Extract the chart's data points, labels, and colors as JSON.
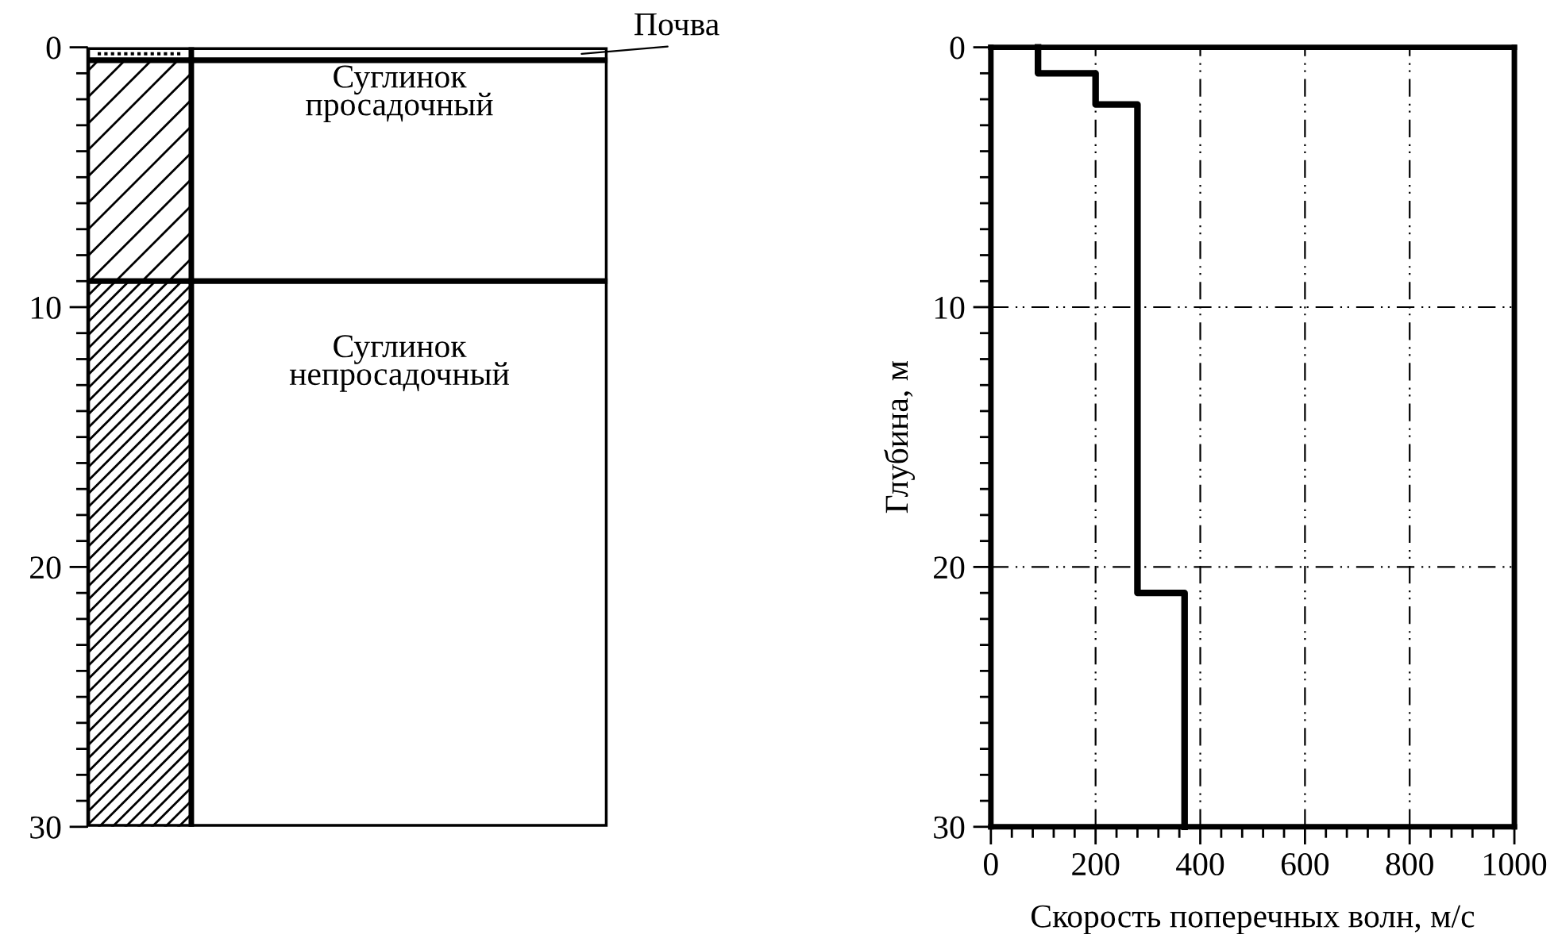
{
  "chart_data": [
    {
      "type": "bar",
      "stacked": true,
      "categories": [
        null
      ],
      "ylim": [
        30,
        0
      ],
      "yticks": [
        0,
        10,
        20,
        30
      ],
      "tick_labels": "y",
      "series": [
        {
          "name": "Почва",
          "color": "#ffffff",
          "values": [
            0.5
          ]
        },
        {
          "name": "Суглинок\nпросадочный",
          "color": "#ffffff",
          "values": [
            8.5
          ]
        },
        {
          "name": "Суглинок\nнепросадочный",
          "color": "#ffffff",
          "values": [
            21
          ]
        }
      ]
    },
    {
      "type": "line",
      "xlabel": "Скорость поперечных волн, м/с",
      "ylabel": "Глубина, м",
      "xlim": [
        0,
        1000
      ],
      "xticks": [
        0,
        200,
        400,
        600,
        800,
        1000
      ],
      "ylim": [
        30,
        0
      ],
      "yticks": [
        0,
        10,
        20,
        30
      ],
      "grid": true,
      "line_style": "solid",
      "series": [
        {
          "color": "#000000",
          "x": [
            90,
            90,
            200,
            200,
            280,
            280,
            370,
            370
          ],
          "values": [
            0,
            1,
            1,
            2.2,
            2.2,
            21,
            21,
            30
          ]
        }
      ]
    }
  ]
}
